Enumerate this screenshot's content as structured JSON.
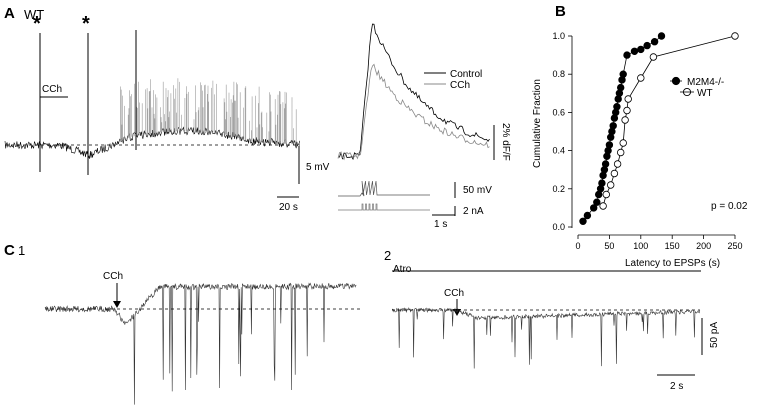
{
  "panel_a": {
    "letter": "A",
    "genotype": "WT",
    "star_marker": "*",
    "drug_label": "CCh",
    "voltage_scale": "5 mV",
    "time_scale": "20 s",
    "calcium": {
      "legend_control": "Control",
      "legend_cch": "CCh",
      "dff_scale": "2% dF/F",
      "vm_scale": "50 mV",
      "current_scale": "2 nA",
      "time_scale": "1 s"
    }
  },
  "panel_c": {
    "letter": "C",
    "sub1": "1",
    "sub2": "2",
    "drug_label": "CCh",
    "atropine_label": "Atro",
    "current_scale": "50 pA",
    "time_scale": "2 s"
  },
  "colors": {
    "control": "#000000",
    "cch": "#888888",
    "open_marker_fill": "#ffffff"
  },
  "chart_data": {
    "type": "line",
    "panel": "B",
    "xlabel": "Latency to EPSPs (s)",
    "ylabel": "Cumulative Fraction",
    "xlim": [
      0,
      250
    ],
    "ylim": [
      0,
      1.0
    ],
    "x_ticks": [
      0,
      50,
      100,
      150,
      200,
      250
    ],
    "y_ticks": [
      0.0,
      0.2,
      0.4,
      0.6,
      0.8,
      1.0
    ],
    "legend_position": "right",
    "annotation": "p = 0.02",
    "series": [
      {
        "name": "M2M4-/-",
        "marker": "filled-circle",
        "x": [
          8,
          15,
          25,
          30,
          33,
          36,
          38,
          40,
          42,
          44,
          46,
          48,
          50,
          52,
          54,
          56,
          58,
          60,
          62,
          64,
          66,
          68,
          70,
          72,
          78,
          90,
          100,
          110,
          122,
          133
        ],
        "y": [
          0.03,
          0.06,
          0.1,
          0.13,
          0.17,
          0.2,
          0.23,
          0.27,
          0.3,
          0.33,
          0.37,
          0.4,
          0.43,
          0.47,
          0.5,
          0.53,
          0.57,
          0.6,
          0.63,
          0.67,
          0.7,
          0.73,
          0.77,
          0.8,
          0.9,
          0.92,
          0.93,
          0.95,
          0.97,
          1.0
        ]
      },
      {
        "name": "WT",
        "marker": "open-circle",
        "x": [
          40,
          45,
          52,
          58,
          63,
          68,
          72,
          75,
          78,
          80,
          100,
          120,
          250
        ],
        "y": [
          0.11,
          0.17,
          0.22,
          0.28,
          0.33,
          0.39,
          0.44,
          0.56,
          0.61,
          0.67,
          0.78,
          0.89,
          1.0
        ]
      }
    ]
  }
}
